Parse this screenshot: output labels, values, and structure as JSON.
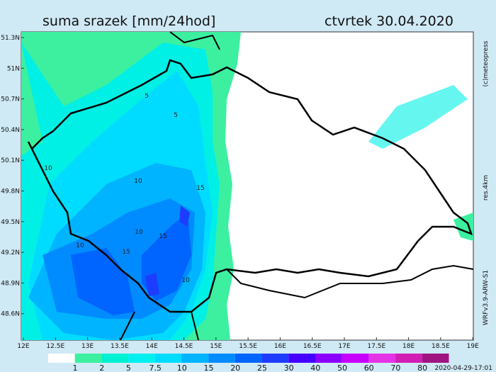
{
  "header": {
    "title": "suma srazek [mm/24hod]",
    "date": "ctvrtek 30.04.2020"
  },
  "lat_labels": [
    "51.3N",
    "51N",
    "50.7N",
    "50.4N",
    "50.1N",
    "49.8N",
    "49.5N",
    "49.2N",
    "48.9N",
    "48.6N"
  ],
  "lon_labels": [
    "12E",
    "12.5E",
    "13E",
    "13.5E",
    "14E",
    "14.5E",
    "15E",
    "15.5E",
    "16E",
    "16.5E",
    "17E",
    "17.5E",
    "18E",
    "18.5E",
    "19E"
  ],
  "legend": {
    "labels": [
      "1",
      "2",
      "5",
      "7.5",
      "10",
      "15",
      "20",
      "25",
      "30",
      "40",
      "50",
      "60",
      "70",
      "80"
    ]
  },
  "side": {
    "copyright": "(c)meteopress",
    "resolution": "res.4km",
    "model": "WRFv3.9-ARW-S1"
  },
  "timestamp": "2020-04-29-17:01",
  "contour_labels": [
    "5",
    "5",
    "10",
    "10",
    "15",
    "10",
    "15",
    "15",
    "10",
    "10"
  ]
}
